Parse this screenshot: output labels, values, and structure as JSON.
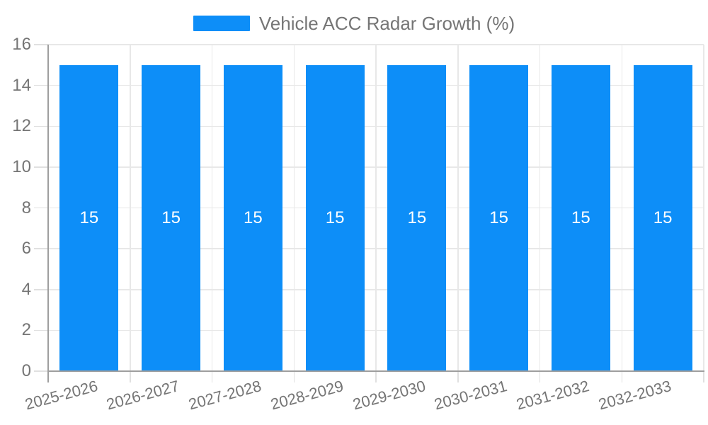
{
  "chart_data": {
    "type": "bar",
    "title": "Vehicle ACC Radar Growth (%)",
    "categories": [
      "2025-2026",
      "2026-2027",
      "2027-2028",
      "2028-2029",
      "2029-2030",
      "2030-2031",
      "2031-2032",
      "2032-2033"
    ],
    "values": [
      15,
      15,
      15,
      15,
      15,
      15,
      15,
      15
    ],
    "xlabel": "",
    "ylabel": "",
    "ylim": [
      0,
      16
    ],
    "yticks": [
      0,
      2,
      4,
      6,
      8,
      10,
      12,
      14,
      16
    ],
    "grid": true,
    "legend_position": "top-center",
    "bar_value_labels_visible": true,
    "colors": {
      "bar": "#0d8ef8",
      "bar_value_label": "#ffffff",
      "axis_line": "#9e9e9e",
      "gridline": "#e8e8e8",
      "tick": "#e0e0e0",
      "tick_label": "#757575",
      "legend_text": "#757575",
      "background": "#ffffff"
    }
  }
}
